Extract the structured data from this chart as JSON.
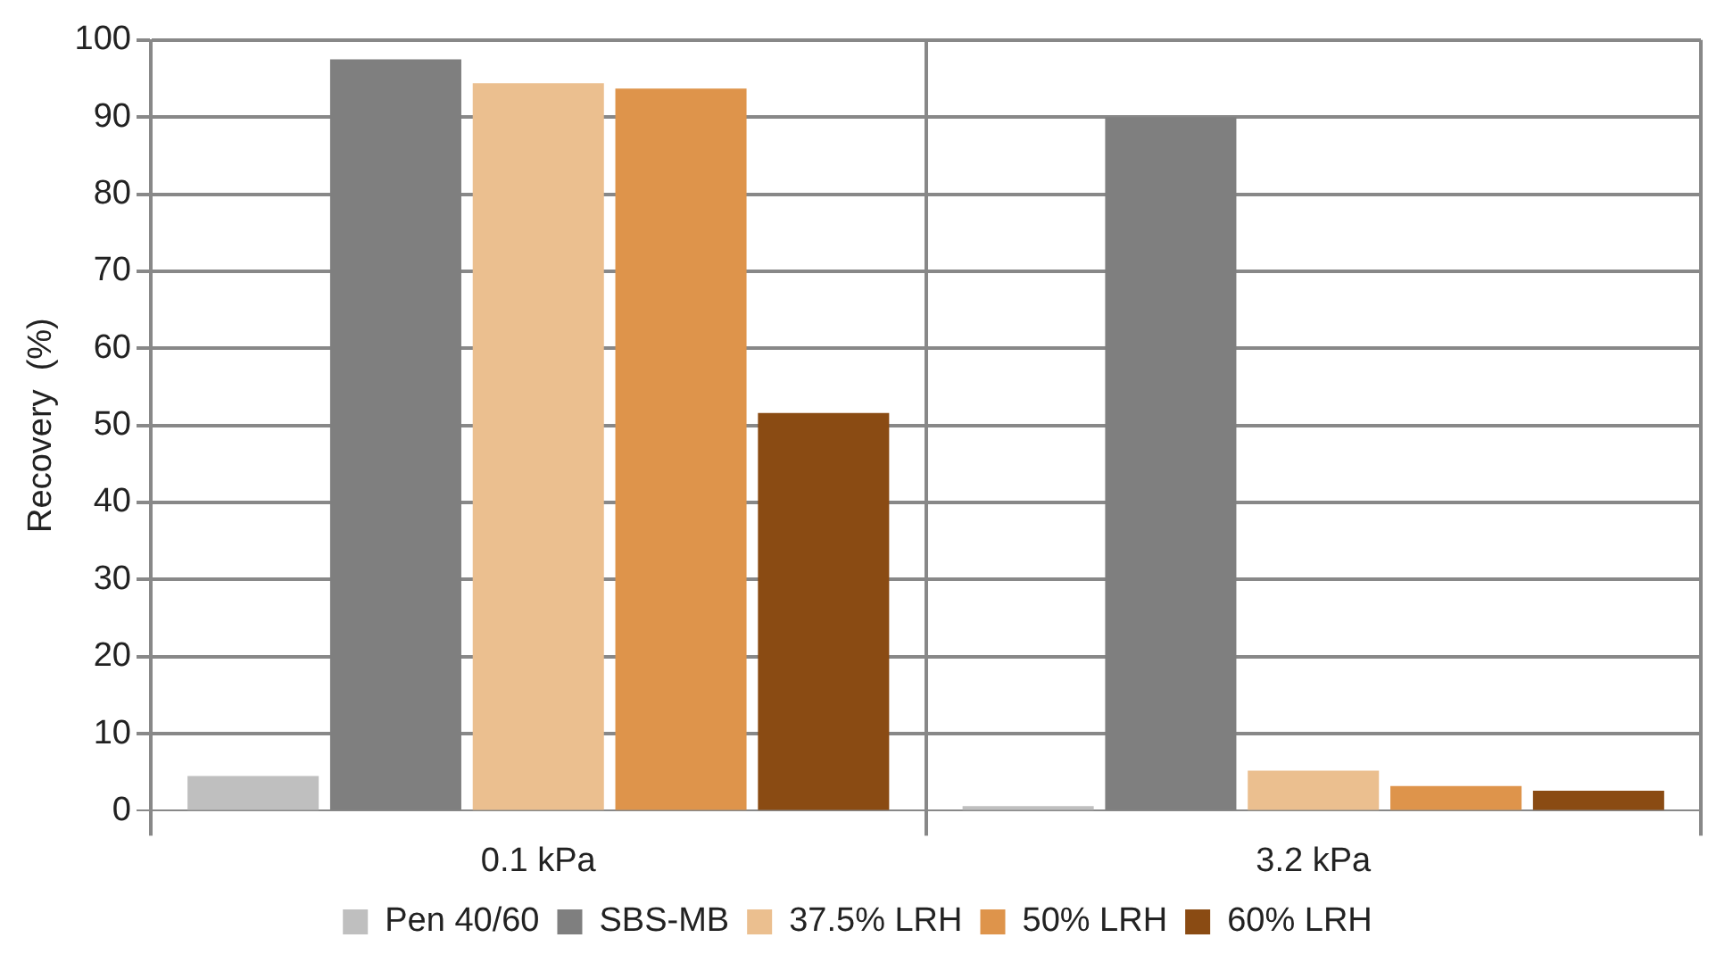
{
  "chart_data": {
    "type": "bar",
    "ylabel": "Recovery  (%)",
    "categories": [
      "0.1 kPa",
      "3.2 kPa"
    ],
    "series": [
      {
        "name": "Pen 40/60",
        "color": "#bfbfbf",
        "values": [
          4.5,
          0.6
        ]
      },
      {
        "name": "SBS-MB",
        "color": "#7f7f7f",
        "values": [
          97.5,
          90
        ]
      },
      {
        "name": "37.5% LRH",
        "color": "#ebbf8f",
        "values": [
          94.4,
          5.2
        ]
      },
      {
        "name": "50% LRH",
        "color": "#de944b",
        "values": [
          93.7,
          3.2
        ]
      },
      {
        "name": "60% LRH",
        "color": "#8a4b13",
        "values": [
          51.6,
          2.6
        ]
      }
    ],
    "ylim": [
      0,
      100
    ],
    "yticks": [
      0,
      10,
      20,
      30,
      40,
      50,
      60,
      70,
      80,
      90,
      100
    ],
    "grid": true,
    "legend": "bottom"
  }
}
